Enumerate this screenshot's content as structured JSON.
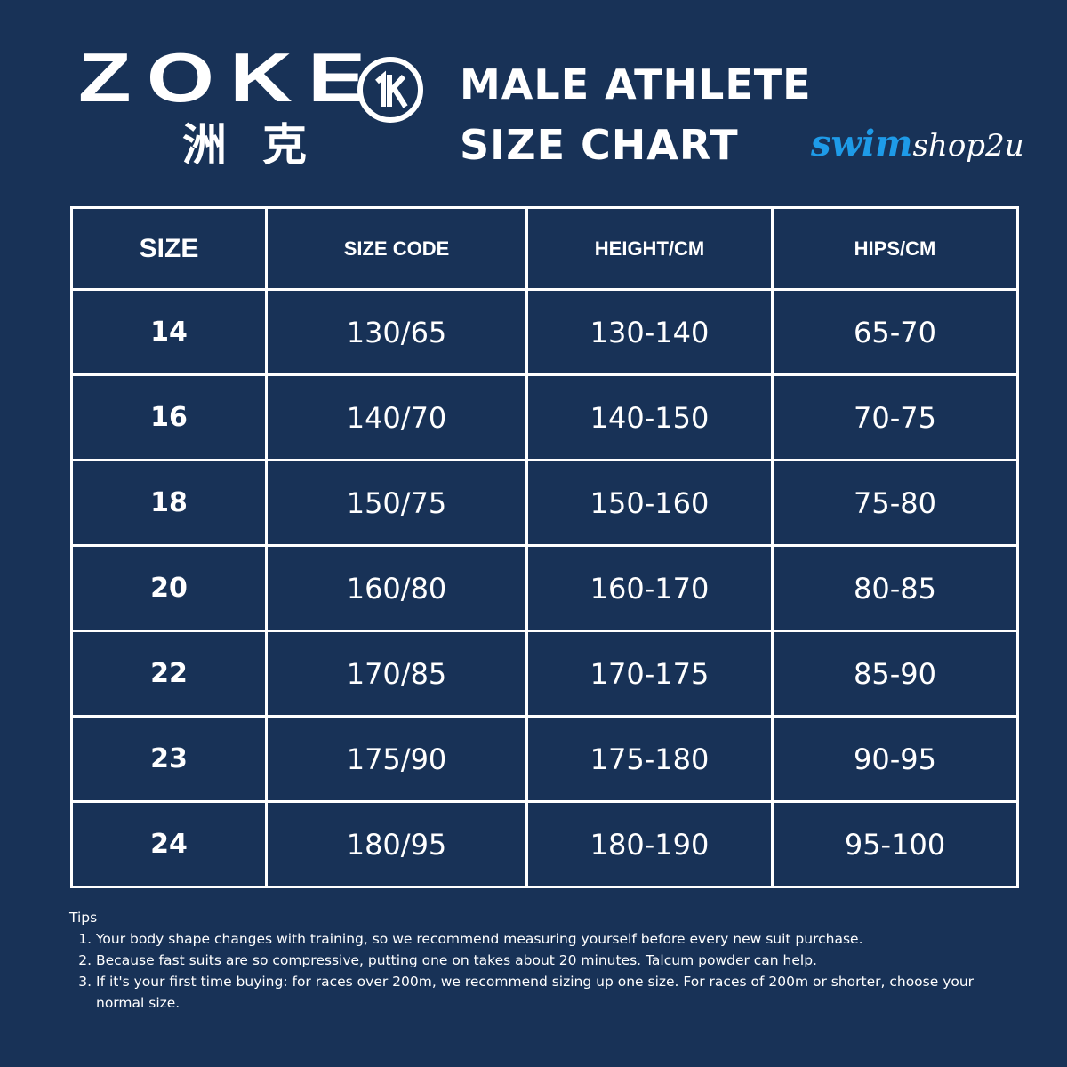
{
  "header": {
    "logo": {
      "wordmark": "ZOKE",
      "chinese": "洲克"
    },
    "title": [
      "MALE ATHLETE",
      "SIZE CHART"
    ],
    "shop": {
      "swim": "swim",
      "rest": "shop2u"
    }
  },
  "table": {
    "columns": [
      "SIZE",
      "SIZE CODE",
      "HEIGHT/CM",
      "HIPS/CM"
    ],
    "rows": [
      [
        "14",
        "130/65",
        "130-140",
        "65-70"
      ],
      [
        "16",
        "140/70",
        "140-150",
        "70-75"
      ],
      [
        "18",
        "150/75",
        "150-160",
        "75-80"
      ],
      [
        "20",
        "160/80",
        "160-170",
        "80-85"
      ],
      [
        "22",
        "170/85",
        "170-175",
        "85-90"
      ],
      [
        "23",
        "175/90",
        "175-180",
        "90-95"
      ],
      [
        "24",
        "180/95",
        "180-190",
        "95-100"
      ]
    ]
  },
  "tips": {
    "title": "Tips",
    "items": [
      "Your body shape changes with training, so we recommend measuring yourself before every new suit purchase.",
      "Because fast suits are so compressive, putting one on takes about 20 minutes. Talcum powder can help.",
      "If it's your first time buying: for races over 200m, we recommend sizing up one size. For races of 200m or shorter, choose your normal size."
    ]
  }
}
